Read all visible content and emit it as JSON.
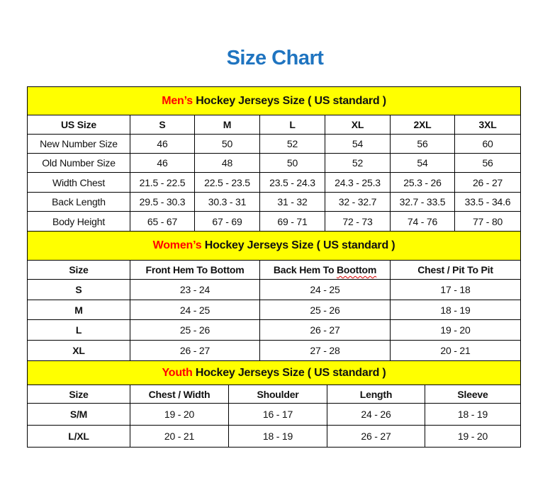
{
  "title": "Size Chart",
  "colors": {
    "title": "#1f74c0",
    "section_bg": "#ffff00",
    "accent": "#ff0000"
  },
  "men": {
    "heading_accent": "Men’s",
    "heading_rest": " Hockey Jerseys Size ( US standard )",
    "headers": [
      "US Size",
      "S",
      "M",
      "L",
      "XL",
      "2XL",
      "3XL"
    ],
    "rows": [
      [
        "New Number Size",
        "46",
        "50",
        "52",
        "54",
        "56",
        "60"
      ],
      [
        "Old Number Size",
        "46",
        "48",
        "50",
        "52",
        "54",
        "56"
      ],
      [
        "Width Chest",
        "21.5 - 22.5",
        "22.5 - 23.5",
        "23.5 - 24.3",
        "24.3 - 25.3",
        "25.3 - 26",
        "26 - 27"
      ],
      [
        "Back Length",
        "29.5 - 30.3",
        "30.3 - 31",
        "31 - 32",
        "32 - 32.7",
        "32.7 - 33.5",
        "33.5 - 34.6"
      ],
      [
        "Body Height",
        "65 - 67",
        "67 - 69",
        "69 - 71",
        "72 - 73",
        "74 - 76",
        "77 - 80"
      ]
    ]
  },
  "women": {
    "heading_accent": "Women’s",
    "heading_rest": " Hockey Jerseys Size ( US standard )",
    "headers": [
      "Size",
      "Front Hem To Bottom",
      "Back Hem To ",
      "Chest / Pit To Pit"
    ],
    "misspelled_word": "Boottom",
    "rows": [
      [
        "S",
        "23 - 24",
        "24 - 25",
        "17 - 18"
      ],
      [
        "M",
        "24 - 25",
        "25 - 26",
        "18 - 19"
      ],
      [
        "L",
        "25 - 26",
        "26 - 27",
        "19 - 20"
      ],
      [
        "XL",
        "26 - 27",
        "27 - 28",
        "20 - 21"
      ]
    ]
  },
  "youth": {
    "heading_accent": "Youth",
    "heading_rest": " Hockey Jerseys Size ( US standard )",
    "headers": [
      "Size",
      "Chest / Width",
      "Shoulder",
      "Length",
      "Sleeve"
    ],
    "rows": [
      [
        "S/M",
        "19 - 20",
        "16 - 17",
        "24 - 26",
        "18 - 19"
      ],
      [
        "L/XL",
        "20 - 21",
        "18 - 19",
        "26 - 27",
        "19 - 20"
      ]
    ]
  }
}
